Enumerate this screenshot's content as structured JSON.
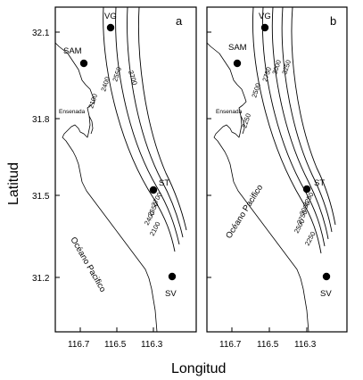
{
  "axes": {
    "x_title": "Longitud",
    "y_title": "Latitud",
    "lat_ticks": [
      "32.1",
      "31.8",
      "31.5",
      "31.2"
    ],
    "lon_ticks": [
      "116.7",
      "116.5",
      "116.3"
    ]
  },
  "labels": {
    "ocean": "Océano Pacifico",
    "bay": "Ensenada"
  },
  "sites": [
    {
      "id": "VG",
      "label": "VG"
    },
    {
      "id": "SAM",
      "label": "SAM"
    },
    {
      "id": "ST",
      "label": "ST"
    },
    {
      "id": "SV",
      "label": "SV"
    }
  ],
  "panels": [
    {
      "label": "a",
      "contours_top": [
        "2100",
        "2400",
        "2550",
        "2700"
      ],
      "contours_bottom": [
        "2700",
        "2550",
        "2400",
        "2100"
      ]
    },
    {
      "label": "b",
      "contours_top": [
        "2250",
        "2500",
        "2750",
        "3000",
        "3250"
      ],
      "contours_bottom": [
        "3250",
        "3000",
        "2750",
        "2500",
        "2250"
      ]
    }
  ],
  "colors": {
    "ink": "#000000",
    "paper": "#ffffff"
  }
}
